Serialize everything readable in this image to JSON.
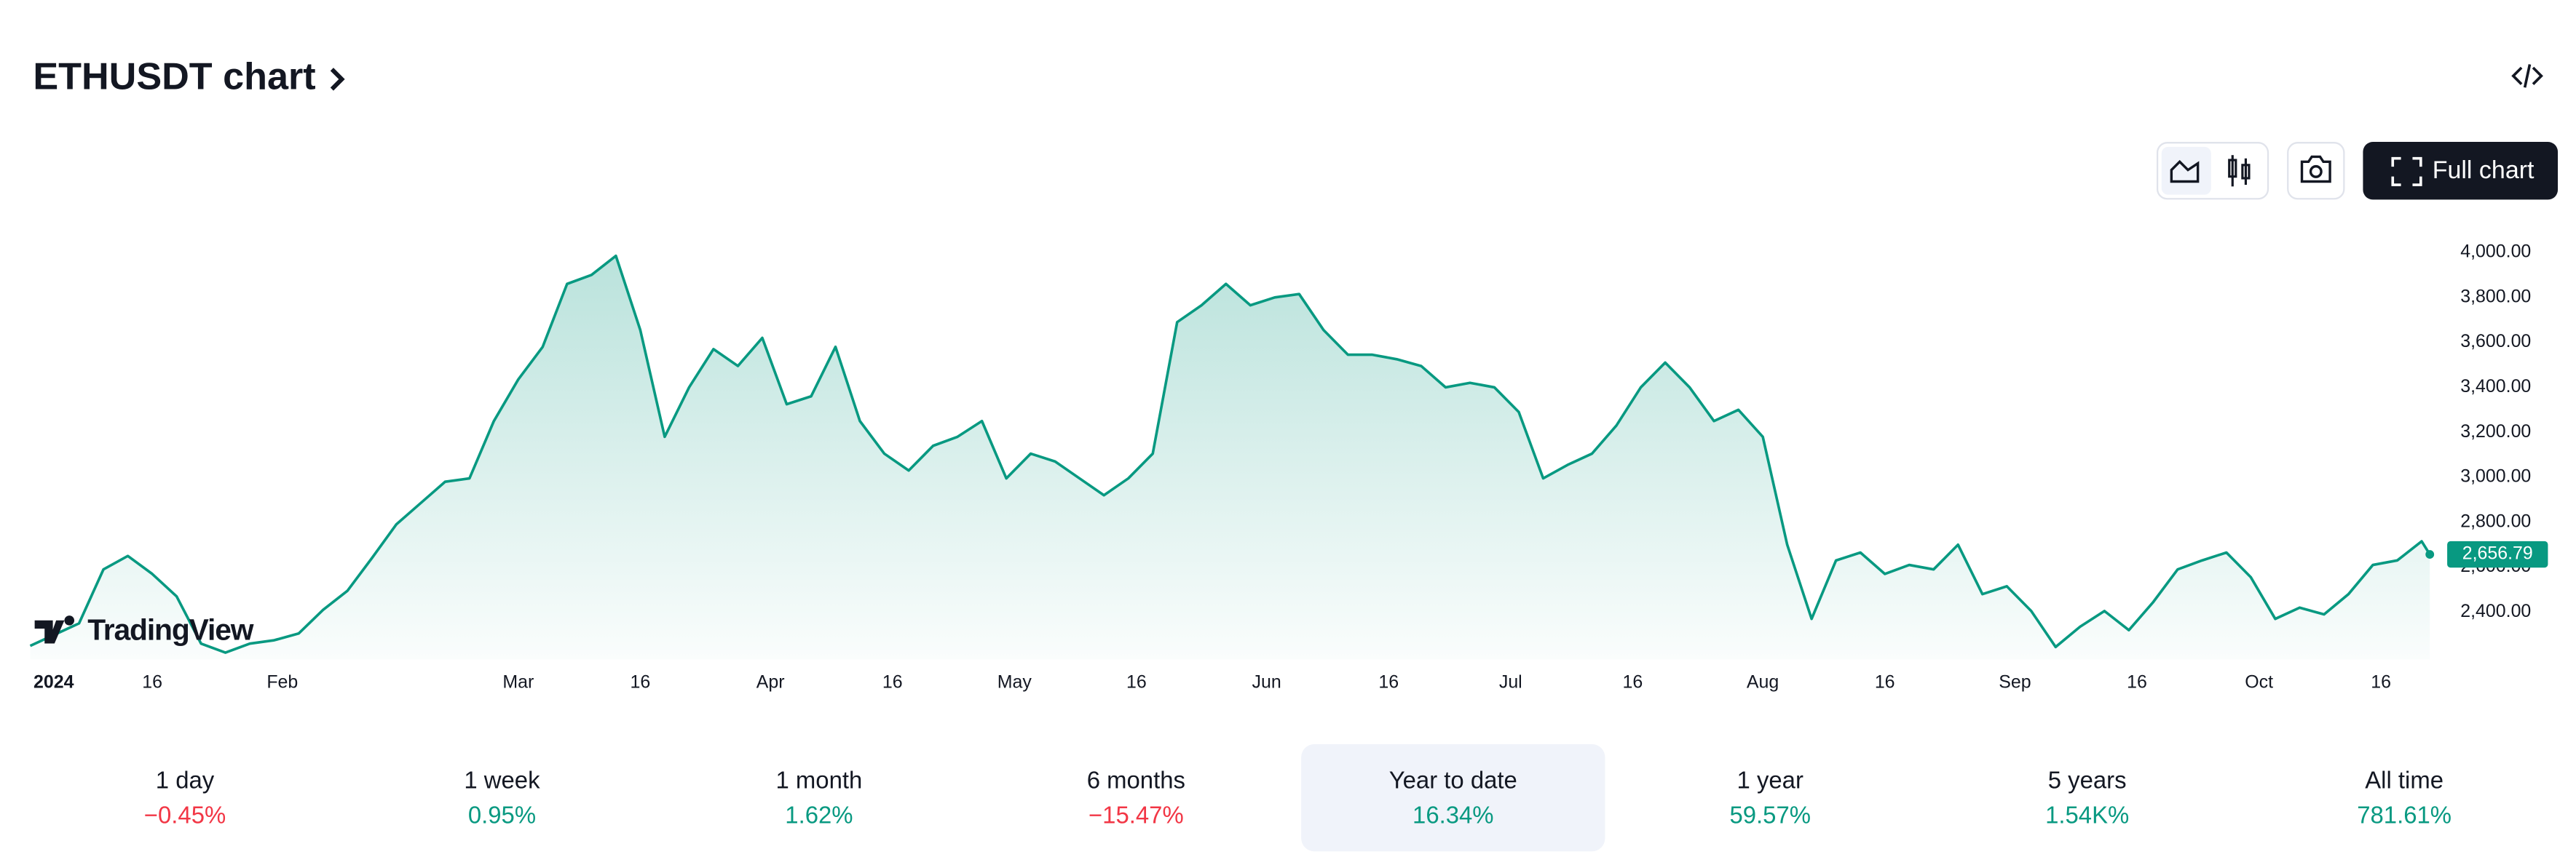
{
  "header": {
    "title": "ETHUSDT chart"
  },
  "toolbar": {
    "full_chart": "Full chart"
  },
  "logo": "TradingView",
  "chart_data": {
    "type": "area",
    "color": "#089981",
    "x": [
      0,
      3,
      6,
      9,
      12,
      15,
      18,
      21,
      24,
      27,
      30,
      33,
      36,
      39,
      42,
      45,
      48,
      51,
      54,
      57,
      60,
      63,
      66,
      69,
      72,
      75,
      78,
      81,
      84,
      87,
      90,
      93,
      96,
      99,
      102,
      105,
      108,
      111,
      114,
      117,
      120,
      123,
      126,
      129,
      132,
      135,
      138,
      141,
      144,
      147,
      150,
      153,
      156,
      159,
      162,
      165,
      168,
      171,
      174,
      177,
      180,
      183,
      186,
      189,
      192,
      195,
      198,
      201,
      204,
      207,
      210,
      213,
      216,
      219,
      222,
      225,
      228,
      231,
      234,
      237,
      240,
      243,
      246,
      249,
      252,
      255,
      258,
      261,
      264,
      267,
      270,
      273,
      276,
      279,
      282,
      285,
      288,
      291,
      294,
      295
    ],
    "values": [
      2250,
      2300,
      2350,
      2590,
      2650,
      2570,
      2470,
      2260,
      2220,
      2260,
      2275,
      2305,
      2410,
      2495,
      2640,
      2790,
      2885,
      2980,
      2995,
      3250,
      3435,
      3580,
      3860,
      3900,
      3985,
      3655,
      3180,
      3400,
      3570,
      3495,
      3620,
      3325,
      3360,
      3580,
      3250,
      3105,
      3030,
      3140,
      3180,
      3250,
      2995,
      3105,
      3070,
      2995,
      2920,
      2995,
      3105,
      3690,
      3765,
      3860,
      3765,
      3800,
      3815,
      3655,
      3545,
      3545,
      3525,
      3495,
      3400,
      3420,
      3400,
      3290,
      2995,
      3055,
      3105,
      3230,
      3400,
      3510,
      3400,
      3250,
      3300,
      3180,
      2700,
      2370,
      2630,
      2665,
      2570,
      2610,
      2590,
      2700,
      2480,
      2515,
      2405,
      2245,
      2335,
      2405,
      2320,
      2445,
      2590,
      2630,
      2665,
      2555,
      2370,
      2420,
      2390,
      2480,
      2610,
      2630,
      2715,
      2656.79
    ],
    "price_label": "2,656.79",
    "xlim": [
      0,
      296
    ],
    "xticks": [
      {
        "value": 0,
        "label": "2024"
      },
      {
        "value": 15,
        "label": "16"
      },
      {
        "value": 31,
        "label": "Feb"
      },
      {
        "value": 60,
        "label": "Mar"
      },
      {
        "value": 75,
        "label": "16"
      },
      {
        "value": 91,
        "label": "Apr"
      },
      {
        "value": 106,
        "label": "16"
      },
      {
        "value": 121,
        "label": "May"
      },
      {
        "value": 136,
        "label": "16"
      },
      {
        "value": 152,
        "label": "Jun"
      },
      {
        "value": 167,
        "label": "16"
      },
      {
        "value": 182,
        "label": "Jul"
      },
      {
        "value": 197,
        "label": "16"
      },
      {
        "value": 213,
        "label": "Aug"
      },
      {
        "value": 228,
        "label": "16"
      },
      {
        "value": 244,
        "label": "Sep"
      },
      {
        "value": 259,
        "label": "16"
      },
      {
        "value": 274,
        "label": "Oct"
      },
      {
        "value": 289,
        "label": "16"
      }
    ],
    "ylim": [
      2190,
      4095
    ],
    "yticks": [
      {
        "value": 2400,
        "label": "2,400.00"
      },
      {
        "value": 2600,
        "label": "2,600.00"
      },
      {
        "value": 2800,
        "label": "2,800.00"
      },
      {
        "value": 3000,
        "label": "3,000.00"
      },
      {
        "value": 3200,
        "label": "3,200.00"
      },
      {
        "value": 3400,
        "label": "3,400.00"
      },
      {
        "value": 3600,
        "label": "3,600.00"
      },
      {
        "value": 3800,
        "label": "3,800.00"
      },
      {
        "value": 4000,
        "label": "4,000.00"
      }
    ]
  },
  "periods": [
    {
      "label": "1 day",
      "change": "−0.45%",
      "direction": "down"
    },
    {
      "label": "1 week",
      "change": "0.95%",
      "direction": "up"
    },
    {
      "label": "1 month",
      "change": "1.62%",
      "direction": "up"
    },
    {
      "label": "6 months",
      "change": "−15.47%",
      "direction": "down"
    },
    {
      "label": "Year to date",
      "change": "16.34%",
      "direction": "up",
      "selected": true
    },
    {
      "label": "1 year",
      "change": "59.57%",
      "direction": "up"
    },
    {
      "label": "5 years",
      "change": "1.54K%",
      "direction": "up"
    },
    {
      "label": "All time",
      "change": "781.61%",
      "direction": "up"
    }
  ]
}
